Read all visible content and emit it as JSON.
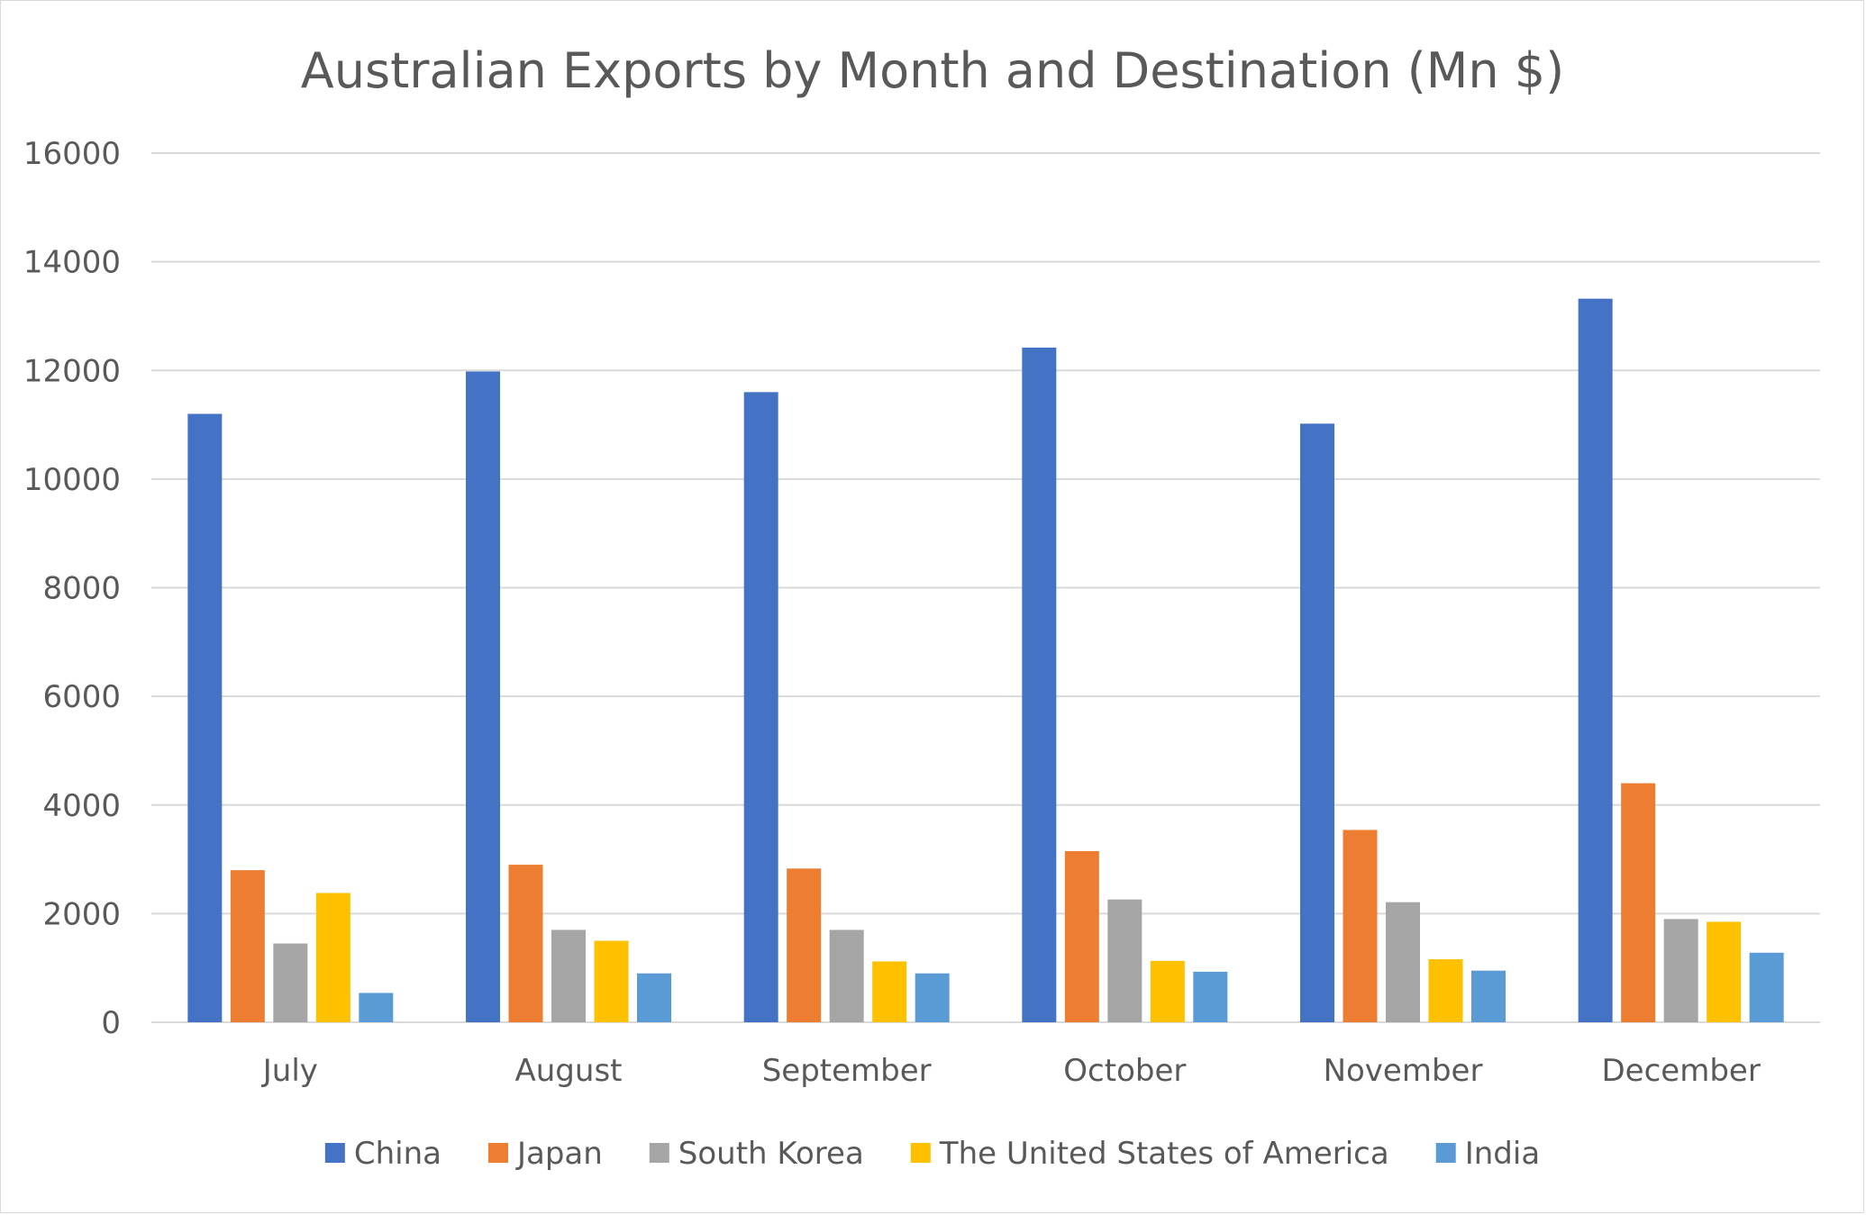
{
  "chart_data": {
    "type": "bar",
    "title": "Australian Exports by Month and Destination (Mn $)",
    "xlabel": "",
    "ylabel": "",
    "ylim": [
      0,
      16000
    ],
    "yticks": [
      "0",
      "2000",
      "4000",
      "6000",
      "8000",
      "10000",
      "12000",
      "14000",
      "16000"
    ],
    "grid": true,
    "legend_position": "bottom",
    "categories": [
      "July",
      "August",
      "September",
      "October",
      "November",
      "December"
    ],
    "series": [
      {
        "name": "China",
        "color": "#4472C4",
        "values": [
          11200,
          11980,
          11600,
          12420,
          11020,
          13320
        ]
      },
      {
        "name": "Japan",
        "color": "#ED7D31",
        "values": [
          2800,
          2900,
          2830,
          3150,
          3540,
          4400
        ]
      },
      {
        "name": "South Korea",
        "color": "#A5A5A5",
        "values": [
          1450,
          1700,
          1700,
          2260,
          2210,
          1900
        ]
      },
      {
        "name": "The United States of America",
        "color": "#FFC000",
        "values": [
          2380,
          1500,
          1120,
          1130,
          1160,
          1850
        ]
      },
      {
        "name": "India",
        "color": "#5B9BD5",
        "values": [
          540,
          900,
          900,
          930,
          950,
          1280
        ]
      }
    ]
  }
}
